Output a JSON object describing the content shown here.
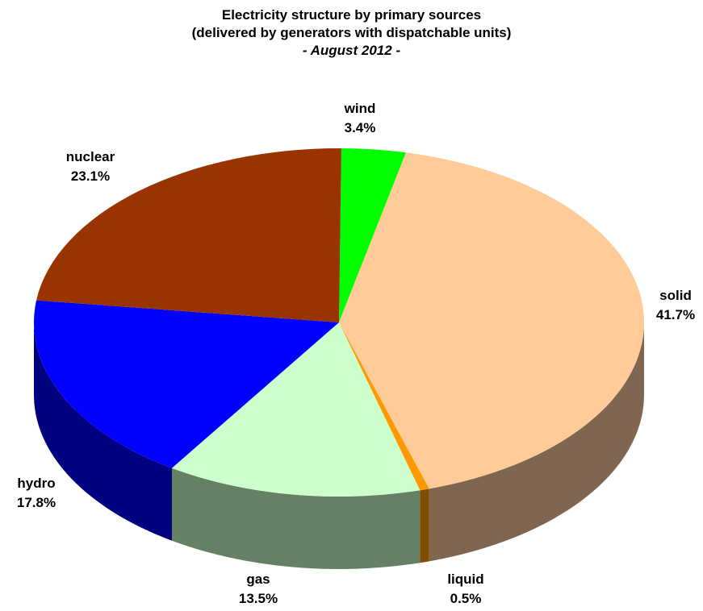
{
  "chart_data": {
    "type": "pie",
    "style": "3d",
    "title": "Electricity structure by primary sources",
    "subtitle": "(delivered by generators with dispatchable units)",
    "period": "- August 2012 -",
    "unit": "%",
    "slices": [
      {
        "name": "wind",
        "value": 3.4,
        "label": "3.4%",
        "color": "#00ff00",
        "side_color": "#009900"
      },
      {
        "name": "solid",
        "value": 41.7,
        "label": "41.7%",
        "color": "#ffcc99",
        "side_color": "#806650"
      },
      {
        "name": "liquid",
        "value": 0.5,
        "label": "0.5%",
        "color": "#ff9900",
        "side_color": "#804c00"
      },
      {
        "name": "gas",
        "value": 13.5,
        "label": "13.5%",
        "color": "#ccffcc",
        "side_color": "#668066"
      },
      {
        "name": "hydro",
        "value": 17.8,
        "label": "17.8%",
        "color": "#0000ff",
        "side_color": "#000080"
      },
      {
        "name": "nuclear",
        "value": 23.1,
        "label": "23.1%",
        "color": "#993300",
        "side_color": "#4d1a00"
      }
    ],
    "legend": "none",
    "data_labels": "outside"
  }
}
